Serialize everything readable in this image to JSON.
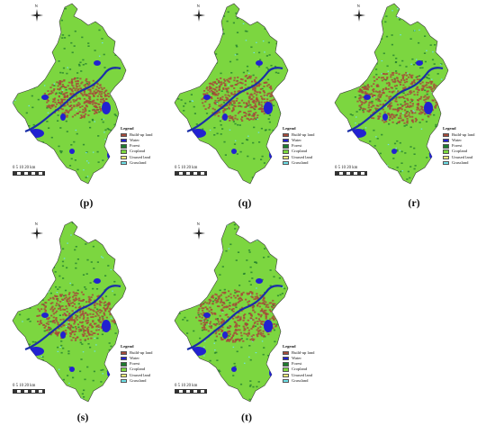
{
  "legend": {
    "title": "Legend",
    "items": [
      {
        "label": "Build-up land",
        "color": "#a64b3a"
      },
      {
        "label": "Water",
        "color": "#2222d0"
      },
      {
        "label": "Forest",
        "color": "#1e7a2e"
      },
      {
        "label": "Cropland",
        "color": "#7cd640"
      },
      {
        "label": "Unused land",
        "color": "#f4f07a"
      },
      {
        "label": "Grassland",
        "color": "#6fe0e8"
      }
    ]
  },
  "scale_bar": "0  5 10      20 km",
  "north_label": "N",
  "panels": [
    {
      "id": "p",
      "caption": "(p)"
    },
    {
      "id": "q",
      "caption": "(q)"
    },
    {
      "id": "r",
      "caption": "(r)"
    },
    {
      "id": "s",
      "caption": "(s)"
    },
    {
      "id": "t",
      "caption": "(t)"
    }
  ]
}
